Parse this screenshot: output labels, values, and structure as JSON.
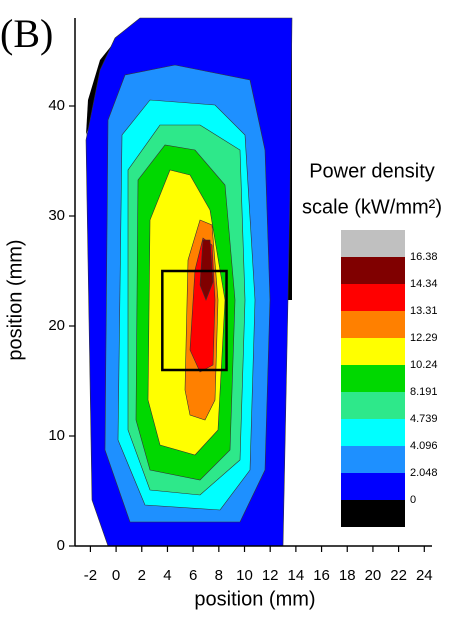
{
  "chart_data": {
    "type": "contour",
    "panel_label": "(B)",
    "xlabel": "position (mm)",
    "ylabel": "position (mm)",
    "xlim": [
      -3.2,
      24.6
    ],
    "xticks": [
      -2,
      0,
      2,
      4,
      6,
      8,
      10,
      12,
      14,
      16,
      18,
      20,
      22,
      24
    ],
    "ylim": [
      0,
      48
    ],
    "yticks": [
      0,
      10,
      20,
      30,
      40
    ],
    "colorbar_title": [
      "Power density",
      "scale (kW/mm²)"
    ],
    "levels": [
      0,
      2.048,
      4.096,
      4.739,
      8.191,
      10.24,
      12.29,
      13.31,
      14.34,
      16.38
    ],
    "colors": [
      "#000000",
      "#0000ff",
      "#1e90ff",
      "#00ffff",
      "#2ee88a",
      "#00d800",
      "#ffff00",
      "#ff8000",
      "#ff0000",
      "#800000",
      "#c0c0c0"
    ],
    "box": {
      "x": [
        3.6,
        8.6
      ],
      "y": [
        16,
        25
      ]
    }
  }
}
